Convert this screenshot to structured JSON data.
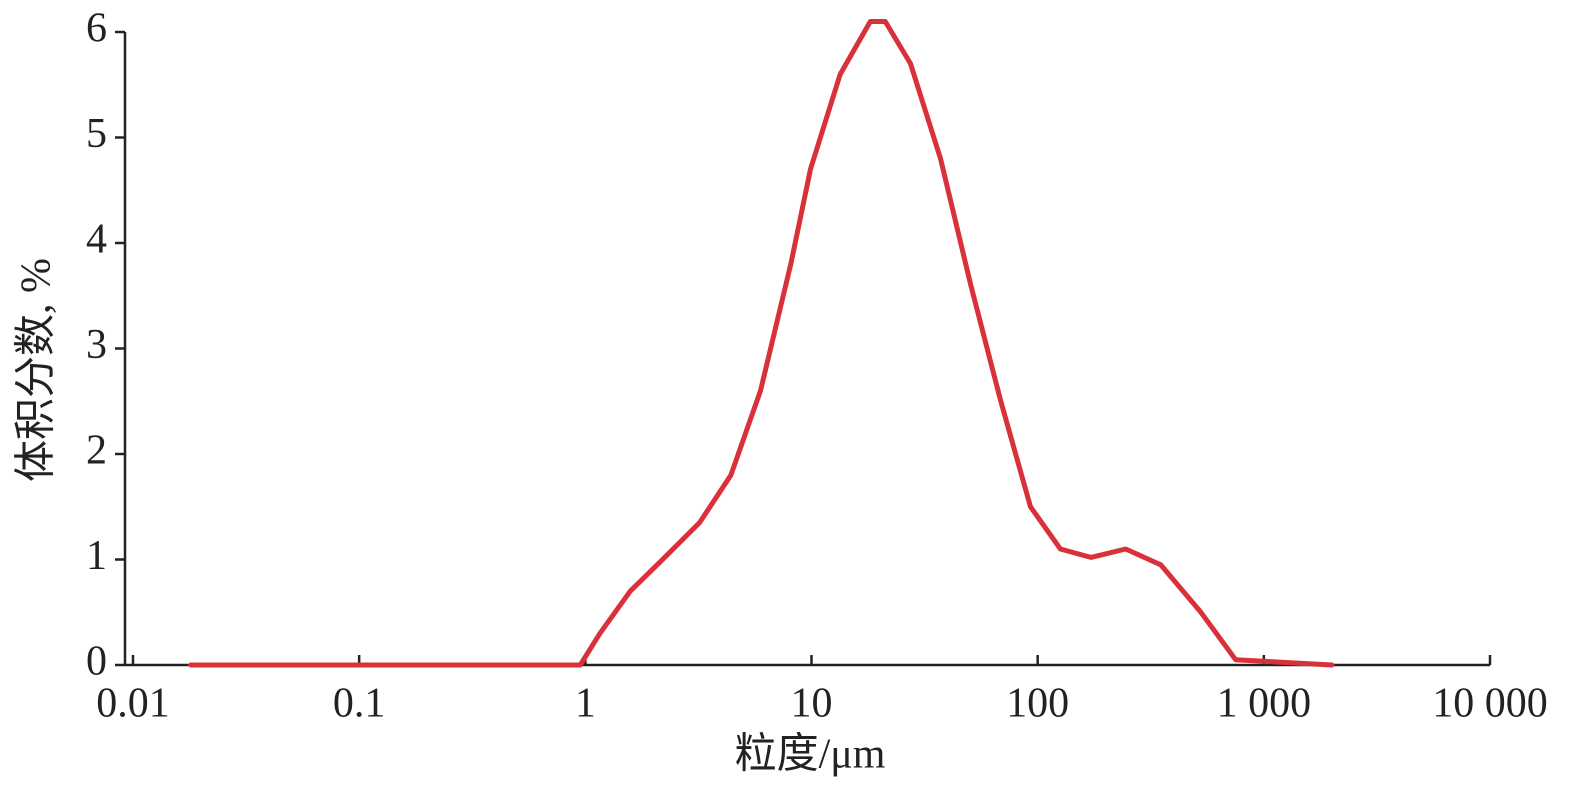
{
  "chart_data": {
    "type": "line",
    "x_label": "粒度/μm",
    "y_label": "体积分数, %",
    "log_x": true,
    "xlim": [
      0.01,
      10000
    ],
    "ylim": [
      0,
      6
    ],
    "xticks": [
      0.01,
      0.1,
      1,
      10,
      100,
      {
        "value": 1000,
        "label": "1 000"
      },
      {
        "value": 10000,
        "label": "10 000"
      }
    ],
    "yticks": [
      0,
      1,
      2,
      3,
      4,
      5,
      6
    ],
    "series": [
      {
        "color": "#d9313a",
        "x": [
          0.018,
          0.95,
          1.16,
          1.58,
          2.15,
          3.2,
          4.4,
          5.95,
          8.1,
          9.9,
          13.4,
          18.2,
          21.2,
          27.4,
          37.2,
          50.6,
          68.7,
          93,
          126,
          172,
          245,
          350,
          527,
          750,
          2000
        ],
        "values": [
          0,
          0,
          0.3,
          0.7,
          0.98,
          1.35,
          1.8,
          2.6,
          3.8,
          4.7,
          5.6,
          6.1,
          6.1,
          5.7,
          4.8,
          3.6,
          2.5,
          1.5,
          1.1,
          1.02,
          1.1,
          0.95,
          0.5,
          0.05,
          0
        ]
      }
    ]
  }
}
